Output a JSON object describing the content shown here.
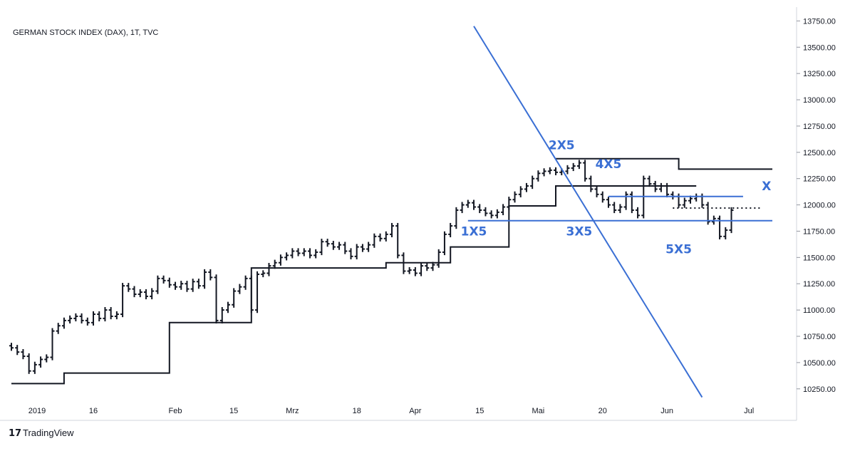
{
  "chart_data": {
    "type": "ohlc",
    "title": "GERMAN STOCK INDEX (DAX), 1T, TVC",
    "brand": "TradingView",
    "y_axis": {
      "position": "right",
      "ylim": [
        10140,
        13800
      ],
      "ticks": [
        "13750.00",
        "13500.00",
        "13250.00",
        "13000.00",
        "12750.00",
        "12500.00",
        "12250.00",
        "12000.00",
        "11750.00",
        "11500.00",
        "11250.00",
        "11000.00",
        "10750.00",
        "10500.00",
        "10250.00"
      ]
    },
    "x_axis": {
      "labels": [
        "2019",
        "16",
        "Feb",
        "15",
        "Mrz",
        "18",
        "Apr",
        "15",
        "Mai",
        "20",
        "Jun",
        "Jul"
      ]
    },
    "colors": {
      "bars": "#131722",
      "trend_lines": "#3a6fd4",
      "step_line": "#131722"
    },
    "closes": [
      10640,
      10600,
      10560,
      10420,
      10480,
      10530,
      10550,
      10800,
      10850,
      10900,
      10920,
      10940,
      10900,
      10880,
      10960,
      10920,
      11000,
      10940,
      10960,
      11230,
      11200,
      11150,
      11170,
      11130,
      11180,
      11300,
      11280,
      11240,
      11220,
      11250,
      11200,
      11270,
      11230,
      11360,
      11310,
      10900,
      11000,
      11050,
      11180,
      11220,
      11300,
      11000,
      11340,
      11350,
      11420,
      11450,
      11500,
      11520,
      11560,
      11540,
      11560,
      11520,
      11550,
      11650,
      11630,
      11600,
      11620,
      11560,
      11510,
      11600,
      11580,
      11620,
      11700,
      11680,
      11720,
      11800,
      11520,
      11370,
      11380,
      11350,
      11420,
      11400,
      11430,
      11550,
      11720,
      11800,
      11950,
      12000,
      12020,
      11980,
      11950,
      11920,
      11900,
      11930,
      11980,
      12050,
      12100,
      12150,
      12180,
      12250,
      12300,
      12320,
      12330,
      12310,
      12320,
      12350,
      12370,
      12400,
      12250,
      12150,
      12100,
      12050,
      12000,
      11950,
      11980,
      12100,
      11950,
      11900,
      12250,
      12200,
      12150,
      12180,
      12100,
      12080,
      12000,
      12040,
      12060,
      12080,
      12000,
      11840,
      11870,
      11700,
      11760,
      11950
    ],
    "step_line": [
      [
        0,
        10300
      ],
      [
        9,
        10300
      ],
      [
        9,
        10400
      ],
      [
        27,
        10400
      ],
      [
        27,
        10880
      ],
      [
        41,
        10880
      ],
      [
        41,
        11400
      ],
      [
        64,
        11400
      ],
      [
        64,
        11450
      ],
      [
        75,
        11450
      ],
      [
        75,
        11600
      ],
      [
        85,
        11600
      ],
      [
        85,
        11990
      ],
      [
        93,
        11990
      ],
      [
        93,
        12180
      ],
      [
        107,
        12180
      ],
      [
        107,
        12180
      ],
      [
        117,
        12180
      ]
    ],
    "step_line_upper": [
      [
        93,
        12440
      ],
      [
        114,
        12440
      ],
      [
        114,
        12340
      ],
      [
        130,
        12340
      ]
    ],
    "trend_lines": [
      {
        "from": [
          79,
          13700
        ],
        "to": [
          118,
          10170
        ]
      },
      {
        "from": [
          78,
          11850
        ],
        "to": [
          130,
          11850
        ]
      },
      {
        "from": [
          102,
          12080
        ],
        "to": [
          125,
          12080
        ]
      }
    ],
    "dotted_level": 11970,
    "annotations": [
      {
        "label": "1X5",
        "x": 79,
        "y": 11710
      },
      {
        "label": "2X5",
        "x": 94,
        "y": 12530
      },
      {
        "label": "3X5",
        "x": 97,
        "y": 11710
      },
      {
        "label": "4X5",
        "x": 102,
        "y": 12350
      },
      {
        "label": "5X5",
        "x": 114,
        "y": 11540
      },
      {
        "label": "X",
        "x": 129,
        "y": 12140
      }
    ]
  }
}
